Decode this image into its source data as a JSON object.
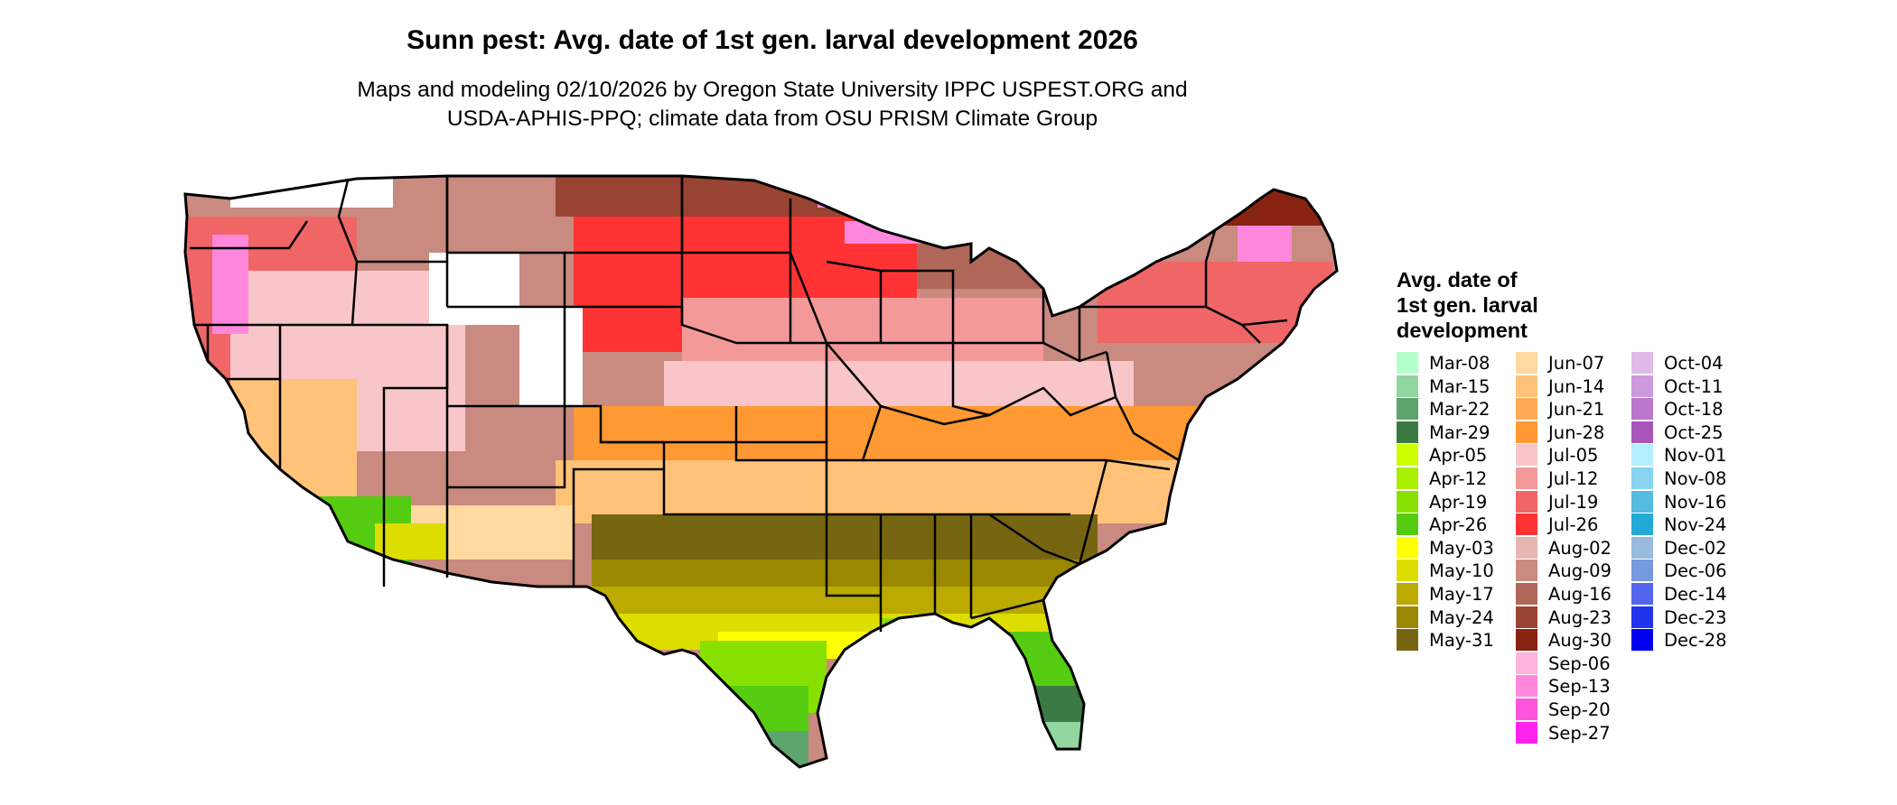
{
  "title": "Sunn pest: Avg. date of 1st gen. larval development 2026",
  "subtitle": {
    "line1": "Maps and modeling 02/10/2026 by Oregon State University IPPC USPEST.ORG and",
    "line2": "USDA-APHIS-PPQ; climate data from OSU PRISM Climate Group"
  },
  "legend": {
    "title_lines": [
      "Avg. date of",
      "1st gen. larval",
      "development"
    ],
    "items": [
      {
        "label": "Mar-08",
        "color": "#b3ffcc"
      },
      {
        "label": "Mar-15",
        "color": "#8fd6a0"
      },
      {
        "label": "Mar-22",
        "color": "#5ea46e"
      },
      {
        "label": "Mar-29",
        "color": "#3b7a43"
      },
      {
        "label": "Apr-05",
        "color": "#ccff00"
      },
      {
        "label": "Apr-12",
        "color": "#aaee00"
      },
      {
        "label": "Apr-19",
        "color": "#88e000"
      },
      {
        "label": "Apr-26",
        "color": "#55cc11"
      },
      {
        "label": "May-03",
        "color": "#ffff00"
      },
      {
        "label": "May-10",
        "color": "#dddd00"
      },
      {
        "label": "May-17",
        "color": "#bbaa00"
      },
      {
        "label": "May-24",
        "color": "#998800"
      },
      {
        "label": "May-31",
        "color": "#776611"
      },
      {
        "label": "Jun-07",
        "color": "#ffd9a0"
      },
      {
        "label": "Jun-14",
        "color": "#ffc278"
      },
      {
        "label": "Jun-21",
        "color": "#ffaa55"
      },
      {
        "label": "Jun-28",
        "color": "#ff9933"
      },
      {
        "label": "Jul-05",
        "color": "#f8c6c9"
      },
      {
        "label": "Jul-12",
        "color": "#f39999"
      },
      {
        "label": "Jul-19",
        "color": "#f06666"
      },
      {
        "label": "Jul-26",
        "color": "#ff3333"
      },
      {
        "label": "Aug-02",
        "color": "#e8b6b0"
      },
      {
        "label": "Aug-09",
        "color": "#c98a80"
      },
      {
        "label": "Aug-16",
        "color": "#b06658"
      },
      {
        "label": "Aug-23",
        "color": "#994433"
      },
      {
        "label": "Aug-30",
        "color": "#882211"
      },
      {
        "label": "Sep-06",
        "color": "#ffb3dd"
      },
      {
        "label": "Sep-13",
        "color": "#ff88dd"
      },
      {
        "label": "Sep-20",
        "color": "#ff55dd"
      },
      {
        "label": "Sep-27",
        "color": "#ff22ee"
      },
      {
        "label": "Oct-04",
        "color": "#e0bbe8"
      },
      {
        "label": "Oct-11",
        "color": "#cc99dd"
      },
      {
        "label": "Oct-18",
        "color": "#bb77cc"
      },
      {
        "label": "Oct-25",
        "color": "#aa55bb"
      },
      {
        "label": "Nov-01",
        "color": "#b3eeff"
      },
      {
        "label": "Nov-08",
        "color": "#88d4f0"
      },
      {
        "label": "Nov-16",
        "color": "#55bbe0"
      },
      {
        "label": "Nov-24",
        "color": "#22aad6"
      },
      {
        "label": "Dec-02",
        "color": "#99bbdd"
      },
      {
        "label": "Dec-06",
        "color": "#7799dd"
      },
      {
        "label": "Dec-14",
        "color": "#5566ee"
      },
      {
        "label": "Dec-23",
        "color": "#2233ee"
      },
      {
        "label": "Dec-28",
        "color": "#0000ee"
      }
    ]
  },
  "map": {
    "outline_color": "#000000",
    "no_data_color": "#ffffff"
  }
}
